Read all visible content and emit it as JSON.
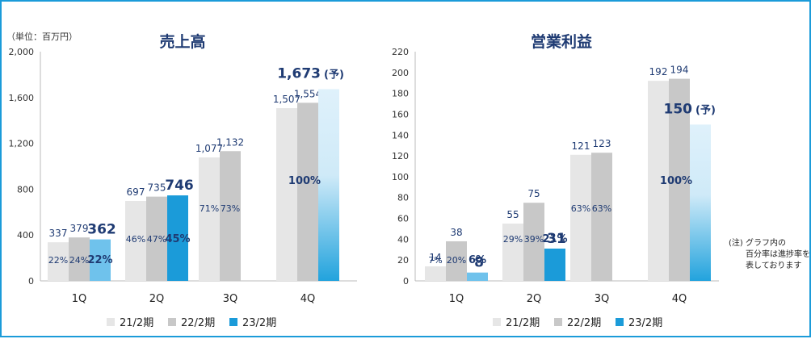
{
  "chart_data": [
    {
      "type": "bar",
      "title": "売上高",
      "unit": "（単位：百万円）",
      "categories": [
        "1Q",
        "2Q",
        "3Q",
        "4Q"
      ],
      "yticks": [
        "0",
        "400",
        "800",
        "1,200",
        "1,600",
        "2,000"
      ],
      "ylim": [
        0,
        2000
      ],
      "series": [
        {
          "name": "21/2期",
          "values": [
            337,
            697,
            1077,
            1507
          ],
          "labels": [
            "337",
            "697",
            "1,077",
            "1,507"
          ],
          "pct": [
            "22%",
            "46%",
            "71%",
            ""
          ]
        },
        {
          "name": "22/2期",
          "values": [
            379,
            735,
            1132,
            1554
          ],
          "labels": [
            "379",
            "735",
            "1,132",
            "1,554"
          ],
          "pct": [
            "24%",
            "47%",
            "73%",
            ""
          ]
        },
        {
          "name": "23/2期",
          "values": [
            362,
            746,
            null,
            1673
          ],
          "labels": [
            "362",
            "746",
            "",
            "1,673"
          ],
          "pct": [
            "22%",
            "45%",
            "",
            "100%"
          ]
        }
      ],
      "forecast_mark": "(予)",
      "grid": false
    },
    {
      "type": "bar",
      "title": "営業利益",
      "categories": [
        "1Q",
        "2Q",
        "3Q",
        "4Q"
      ],
      "yticks": [
        "0",
        "20",
        "40",
        "60",
        "80",
        "100",
        "120",
        "140",
        "160",
        "180",
        "200",
        "220"
      ],
      "ylim": [
        0,
        220
      ],
      "series": [
        {
          "name": "21/2期",
          "values": [
            14,
            55,
            121,
            192
          ],
          "labels": [
            "14",
            "55",
            "121",
            "192"
          ],
          "pct": [
            "7%",
            "29%",
            "63%",
            ""
          ]
        },
        {
          "name": "22/2期",
          "values": [
            38,
            75,
            123,
            194
          ],
          "labels": [
            "38",
            "75",
            "123",
            "194"
          ],
          "pct": [
            "20%",
            "39%",
            "63%",
            ""
          ]
        },
        {
          "name": "23/2期",
          "values": [
            8,
            31,
            null,
            150
          ],
          "labels": [
            "8",
            "31",
            "",
            "150"
          ],
          "pct": [
            "6%",
            "21%",
            "",
            "100%"
          ]
        }
      ],
      "forecast_mark": "(予)",
      "grid": false
    }
  ],
  "note": [
    "(注)",
    "グラフ内の",
    "百分率は進捗率を",
    "表しております"
  ],
  "legend_labels": [
    "21/2期",
    "22/2期",
    "23/2期"
  ],
  "colors": {
    "s21": "#e6e6e6",
    "s22": "#c8c8c8",
    "s23": "#1b9bd9",
    "s23_q1": "#6fc2ec",
    "forecast_top": "#dff1fb",
    "forecast_bottom": "#22a3dd",
    "text": "#1f3b73",
    "frame": "#1b9bd9"
  }
}
